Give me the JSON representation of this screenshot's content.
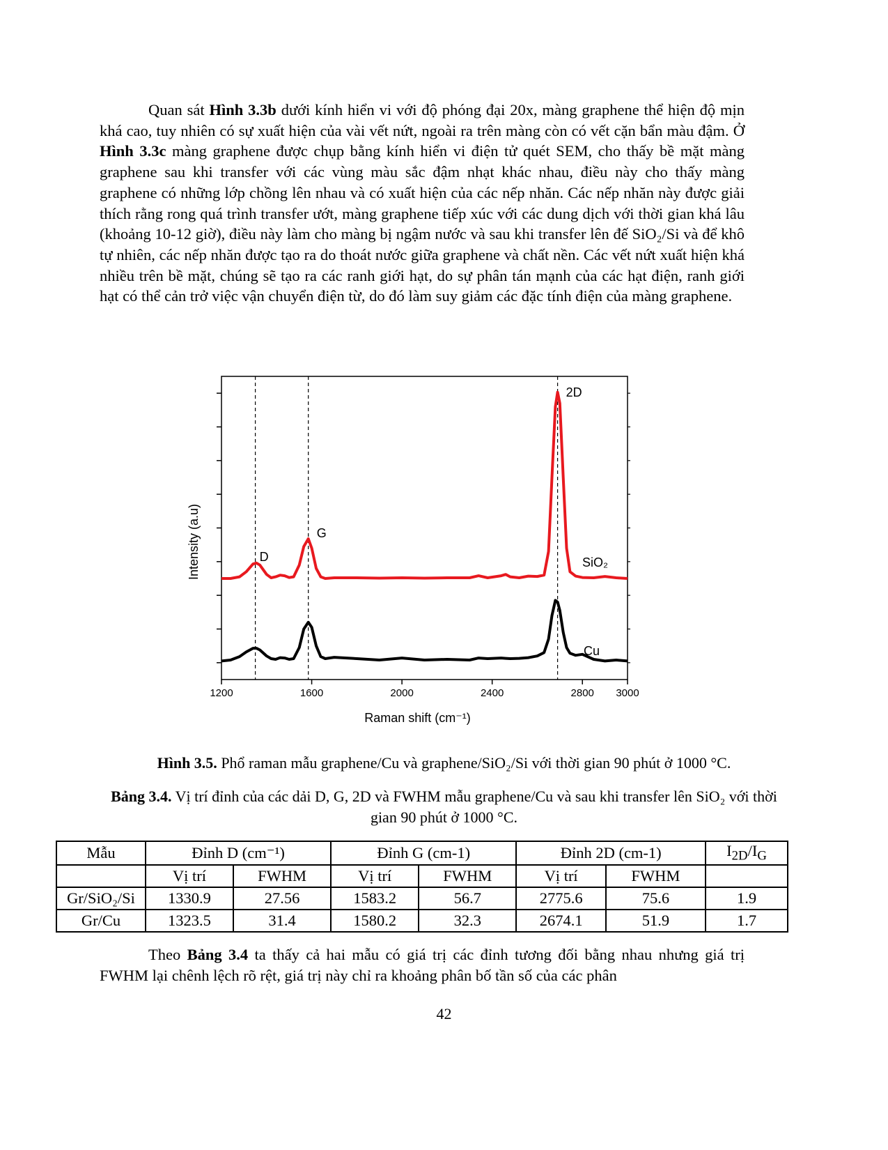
{
  "paragraph_1": [
    "Quan sát ",
    "Hình 3.3b",
    " dưới kính hiển vi với độ phóng đại 20x, màng graphene thể hiện độ mịn khá cao, tuy nhiên có sự xuất hiện của vài vết nứt, ngoài ra trên màng còn có vết cặn bẩn màu đậm. Ở ",
    "Hình 3.3c",
    " màng graphene được chụp bằng kính hiển vi điện tử quét SEM, cho thấy bề mặt màng graphene sau khi transfer với các vùng màu sắc đậm nhạt khác nhau, điều này cho thấy màng graphene có những lớp chồng lên nhau và có xuất hiện của các nếp nhăn. Các nếp nhăn này được giải thích rằng rong quá trình transfer ướt, màng graphene tiếp xúc với các dung dịch với thời gian khá lâu (khoảng 10-12 giờ), điều này làm cho màng bị ngậm nước và sau khi transfer lên đế SiO₂/Si và để khô tự nhiên, các nếp nhăn được tạo ra do thoát nước giữa graphene và chất nền. Các vết nứt xuất hiện khá nhiều trên bề mặt, chúng sẽ tạo ra các ranh giới hạt, do sự phân tán mạnh của các hạt điện, ranh giới hạt có thể cản trở việc vận chuyển điện từ, do đó làm suy giảm các đặc tính điện của màng graphene."
  ],
  "chart_data": {
    "type": "line",
    "x_label": "Raman shift (cm⁻¹)",
    "y_label": "Intensity (a.u)",
    "xlim": [
      1200,
      3000
    ],
    "xticks": [
      1200,
      1600,
      2000,
      2400,
      2800,
      3000
    ],
    "ylim": [
      -0.5,
      8.5
    ],
    "yticks": [
      0,
      1,
      2,
      3,
      4,
      5,
      6,
      7,
      8
    ],
    "ytick_labels": false,
    "peak_lines": [
      1350,
      1585,
      2690
    ],
    "annotations": [
      "D",
      "G",
      "2D"
    ],
    "x": [
      1200,
      1240,
      1280,
      1310,
      1340,
      1355,
      1370,
      1400,
      1420,
      1440,
      1460,
      1480,
      1500,
      1520,
      1545,
      1565,
      1585,
      1600,
      1620,
      1640,
      1660,
      1700,
      1800,
      1900,
      2000,
      2100,
      2200,
      2300,
      2340,
      2380,
      2440,
      2460,
      2480,
      2520,
      2560,
      2600,
      2630,
      2650,
      2665,
      2680,
      2690,
      2700,
      2715,
      2730,
      2745,
      2770,
      2800,
      2850,
      2900,
      2950,
      3000
    ],
    "series": [
      {
        "name": "SiO₂",
        "color": "#e8191f",
        "values": [
          2.5,
          2.5,
          2.55,
          2.7,
          2.93,
          2.96,
          2.9,
          2.62,
          2.52,
          2.55,
          2.6,
          2.58,
          2.53,
          2.55,
          2.9,
          3.45,
          3.68,
          3.4,
          2.8,
          2.55,
          2.5,
          2.52,
          2.52,
          2.51,
          2.52,
          2.51,
          2.52,
          2.52,
          2.58,
          2.52,
          2.58,
          2.62,
          2.55,
          2.52,
          2.57,
          2.56,
          2.6,
          3.3,
          5.5,
          7.6,
          8.03,
          7.7,
          5.5,
          3.4,
          2.7,
          2.57,
          2.53,
          2.52,
          2.56,
          2.52,
          2.5
        ]
      },
      {
        "name": "Cu",
        "color": "#000000",
        "values": [
          0.05,
          0.08,
          0.18,
          0.32,
          0.43,
          0.43,
          0.38,
          0.2,
          0.12,
          0.1,
          0.15,
          0.14,
          0.1,
          0.12,
          0.45,
          1.0,
          1.2,
          1.05,
          0.5,
          0.18,
          0.12,
          0.16,
          0.12,
          0.08,
          0.14,
          0.08,
          0.1,
          0.08,
          0.14,
          0.12,
          0.14,
          0.13,
          0.12,
          0.13,
          0.15,
          0.2,
          0.3,
          0.7,
          1.4,
          1.85,
          1.8,
          1.55,
          0.9,
          0.45,
          0.28,
          0.22,
          0.25,
          0.1,
          0.05,
          0.08,
          0.05
        ]
      }
    ]
  },
  "figure_caption": [
    "Hình 3.5.",
    " Phổ raman mẫu graphene/Cu và graphene/SiO₂/Si với thời gian 90 phút ở 1000 °C."
  ],
  "table_caption": [
    "Bảng 3.4.",
    " Vị trí đỉnh của các dải D, G, 2D và FWHM mẫu graphene/Cu và sau khi transfer lên SiO₂ với thời gian 90 phút ở 1000 °C."
  ],
  "table": {
    "header": [
      "Mẫu",
      "Đỉnh D (cm⁻¹)",
      "Đỉnh G (cm-1)",
      "Đỉnh 2D (cm-1)",
      [
        "I",
        "2D",
        "/I",
        "G"
      ]
    ],
    "subheader": [
      "Vị trí",
      "FWHM",
      "Vị trí",
      "FWHM",
      "Vị trí",
      "FWHM"
    ],
    "rows": [
      [
        "Gr/SiO₂/Si",
        1330.9,
        27.56,
        1583.2,
        56.7,
        2775.6,
        75.6,
        1.9
      ],
      [
        "Gr/Cu",
        1323.5,
        31.4,
        1580.2,
        32.3,
        2674.1,
        51.9,
        1.7
      ]
    ]
  },
  "paragraph_2": [
    "Theo ",
    "Bảng 3.4",
    " ta thấy cả hai mẫu có giá trị các đỉnh tương đối bằng nhau nhưng giá trị FWHM lại chênh lệch rõ rệt, giá trị này chỉ ra khoảng phân bố tần số của các phân"
  ],
  "page_number": 42
}
